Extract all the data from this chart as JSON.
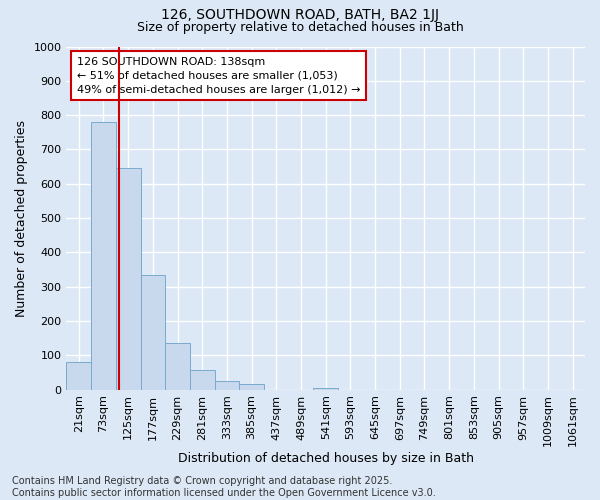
{
  "title1": "126, SOUTHDOWN ROAD, BATH, BA2 1JJ",
  "title2": "Size of property relative to detached houses in Bath",
  "xlabel": "Distribution of detached houses by size in Bath",
  "ylabel": "Number of detached properties",
  "bar_heights": [
    80,
    780,
    645,
    335,
    135,
    58,
    25,
    18,
    0,
    0,
    5,
    0,
    0,
    0,
    0,
    0,
    0,
    0,
    0,
    0,
    0
  ],
  "bar_color": "#c8d8ed",
  "bar_edge_color": "#7aaad0",
  "x_labels": [
    "21sqm",
    "73sqm",
    "125sqm",
    "177sqm",
    "229sqm",
    "281sqm",
    "333sqm",
    "385sqm",
    "437sqm",
    "489sqm",
    "541sqm",
    "593sqm",
    "645sqm",
    "697sqm",
    "749sqm",
    "801sqm",
    "853sqm",
    "905sqm",
    "957sqm",
    "1009sqm",
    "1061sqm"
  ],
  "ylim": [
    0,
    1000
  ],
  "yticks": [
    0,
    100,
    200,
    300,
    400,
    500,
    600,
    700,
    800,
    900,
    1000
  ],
  "vline_x": 1.62,
  "vline_color": "#cc0000",
  "annotation_text": "126 SOUTHDOWN ROAD: 138sqm\n← 51% of detached houses are smaller (1,053)\n49% of semi-detached houses are larger (1,012) →",
  "annotation_box_facecolor": "#ffffff",
  "annotation_box_edgecolor": "#cc0000",
  "bg_color": "#dce8f5",
  "plot_bg_color": "#dce8f5",
  "grid_color": "#ffffff",
  "footer_text": "Contains HM Land Registry data © Crown copyright and database right 2025.\nContains public sector information licensed under the Open Government Licence v3.0.",
  "title_fontsize": 10,
  "subtitle_fontsize": 9,
  "axis_label_fontsize": 9,
  "tick_fontsize": 8,
  "annotation_fontsize": 8,
  "footer_fontsize": 7
}
